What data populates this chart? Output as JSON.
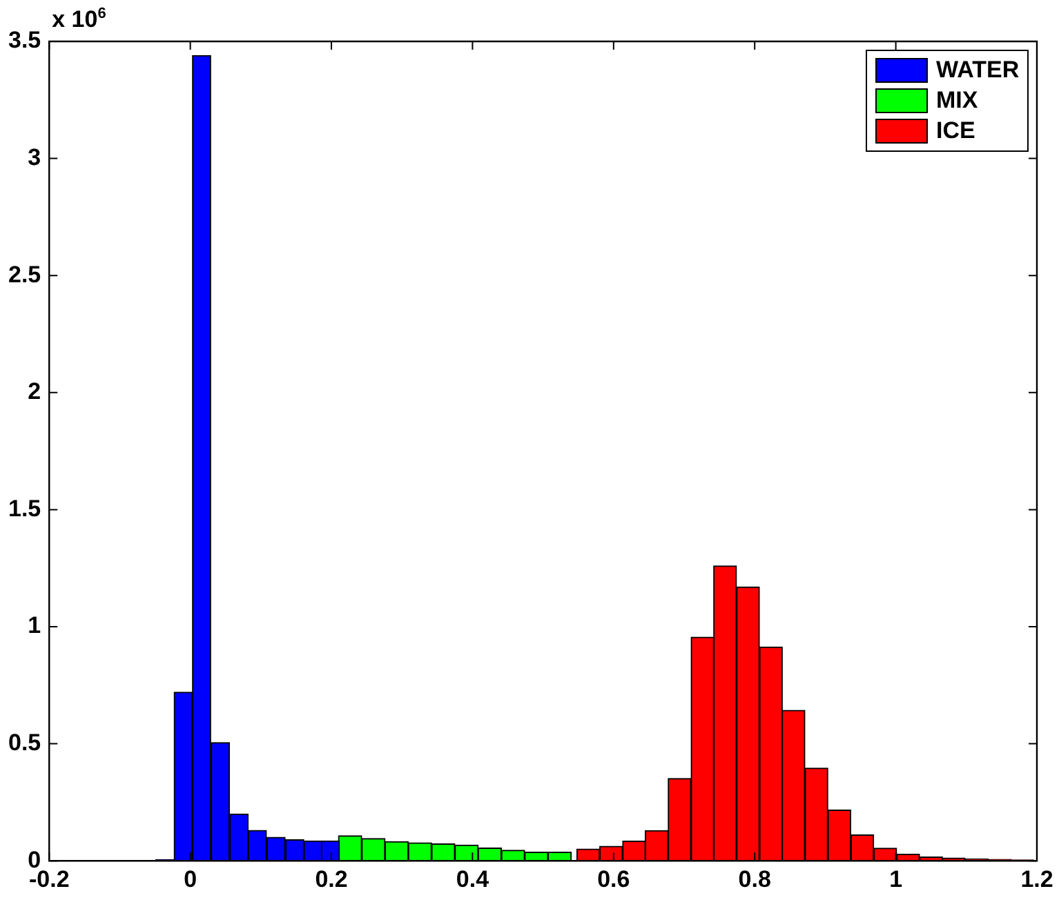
{
  "chart_data": {
    "type": "histogram",
    "annotations": [
      "x 10$^{6}$"
    ],
    "xlim": [
      -0.2,
      1.2
    ],
    "xticks": [
      -0.2,
      0,
      0.2,
      0.4,
      0.6,
      0.8,
      1,
      1.2
    ],
    "ylim": [
      0,
      3.5
    ],
    "yticks": [
      0,
      0.5,
      1,
      1.5,
      2,
      2.5,
      3,
      3.5
    ],
    "grid": false,
    "legend": "top right",
    "bins": [
      -0.049,
      -0.023,
      0.003,
      0.029,
      0.056,
      0.082,
      0.108,
      0.135,
      0.161,
      0.187,
      0.21,
      0.243,
      0.276,
      0.309,
      0.342,
      0.375,
      0.408,
      0.441,
      0.474,
      0.507,
      0.54,
      0.548,
      0.58,
      0.613,
      0.645,
      0.677,
      0.71,
      0.742,
      0.774,
      0.807,
      0.839,
      0.871,
      0.904,
      0.936,
      0.969,
      1.001,
      1.034,
      1.066,
      1.098,
      1.131,
      1.163,
      1.195
    ],
    "series": [
      {
        "name": "WATER",
        "color": "#0000ff",
        "values": [
          0.005,
          0.72,
          3.44,
          0.505,
          0.2,
          0.13,
          0.1,
          0.09,
          0.085,
          0.085,
          null,
          null,
          null,
          null,
          null,
          null,
          null,
          null,
          null,
          null,
          null,
          null,
          null,
          null,
          null,
          null,
          null,
          null,
          null,
          null,
          null,
          null,
          null,
          null,
          null,
          null,
          null,
          null,
          null,
          null,
          null
        ]
      },
      {
        "name": "MIX",
        "color": "#00ff00",
        "values": [
          null,
          null,
          null,
          null,
          null,
          null,
          null,
          null,
          null,
          null,
          0.107,
          0.095,
          0.082,
          0.077,
          0.072,
          0.067,
          0.055,
          0.045,
          0.037,
          0.037,
          null,
          null,
          null,
          null,
          null,
          null,
          null,
          null,
          null,
          null,
          null,
          null,
          null,
          null,
          null,
          null,
          null,
          null,
          null,
          null,
          null
        ]
      },
      {
        "name": "ICE",
        "color": "#ff0000",
        "values": [
          null,
          null,
          null,
          null,
          null,
          null,
          null,
          null,
          null,
          null,
          null,
          null,
          null,
          null,
          null,
          null,
          null,
          null,
          null,
          null,
          null,
          0.05,
          0.062,
          0.084,
          0.129,
          0.352,
          0.955,
          1.26,
          1.17,
          0.913,
          0.643,
          0.396,
          0.217,
          0.111,
          0.054,
          0.028,
          0.016,
          0.012,
          0.008,
          0.006,
          0.004
        ]
      }
    ]
  }
}
